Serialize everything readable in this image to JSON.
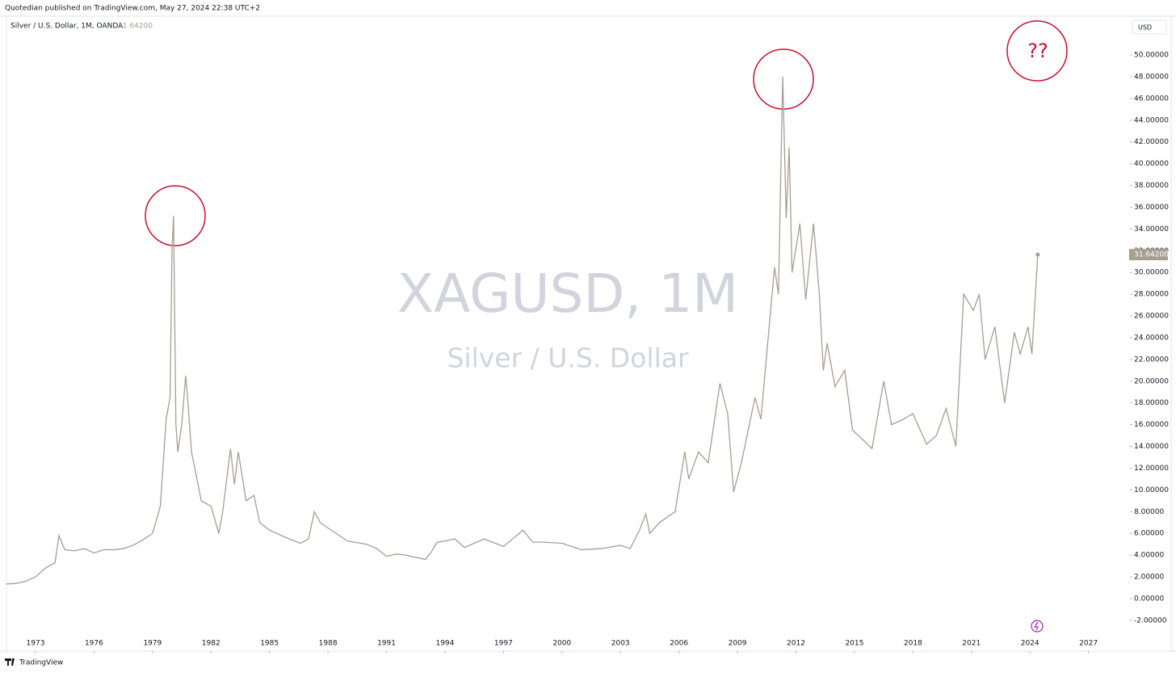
{
  "publisher_note": "Quotedian published on TradingView.com, May 27, 2024 22:38 UTC+2",
  "footer_brand": "TradingView",
  "currency_button": "USD",
  "chart_data": {
    "type": "line",
    "title": "Silver / U.S. Dollar, 1M, OANDA",
    "watermark_symbol": "XAGUSD, 1M",
    "watermark_name": "Silver / U.S. Dollar",
    "annotations": [
      "??"
    ],
    "last_price": {
      "value": 31.642,
      "label": "31.64200"
    },
    "x": [
      1971.5,
      1972.0,
      1972.5,
      1973.0,
      1973.5,
      1974.0,
      1974.2,
      1974.5,
      1975.0,
      1975.5,
      1976.0,
      1976.5,
      1977.0,
      1977.5,
      1978.0,
      1978.5,
      1979.0,
      1979.4,
      1979.7,
      1979.9,
      1980.0,
      1980.08,
      1980.2,
      1980.3,
      1980.5,
      1980.7,
      1980.8,
      1981.0,
      1981.5,
      1982.0,
      1982.4,
      1982.6,
      1983.0,
      1983.2,
      1983.4,
      1983.8,
      1984.2,
      1984.5,
      1985.0,
      1986.0,
      1986.6,
      1987.0,
      1987.3,
      1987.6,
      1988.0,
      1989.0,
      1990.0,
      1990.5,
      1991.0,
      1991.5,
      1992.0,
      1992.5,
      1993.0,
      1993.3,
      1993.6,
      1994.0,
      1994.5,
      1995.0,
      1996.0,
      1997.0,
      1998.0,
      1998.5,
      1999.0,
      2000.0,
      2001.0,
      2002.0,
      2003.0,
      2003.5,
      2004.0,
      2004.3,
      2004.5,
      2005.0,
      2005.8,
      2006.3,
      2006.5,
      2007.0,
      2007.5,
      2008.1,
      2008.5,
      2008.8,
      2009.2,
      2009.9,
      2010.2,
      2010.9,
      2011.1,
      2011.32,
      2011.5,
      2011.65,
      2011.8,
      2012.2,
      2012.5,
      2012.9,
      2013.2,
      2013.4,
      2013.6,
      2014.0,
      2014.5,
      2014.9,
      2015.5,
      2015.9,
      2016.5,
      2016.9,
      2017.5,
      2018.0,
      2018.7,
      2019.2,
      2019.7,
      2020.2,
      2020.6,
      2021.1,
      2021.4,
      2021.7,
      2022.2,
      2022.7,
      2023.2,
      2023.5,
      2023.9,
      2024.1,
      2024.4
    ],
    "series": [
      {
        "name": "XAGUSD",
        "color": "#a89d91",
        "values": [
          1.35,
          1.4,
          1.6,
          2.0,
          2.8,
          3.3,
          5.8,
          4.5,
          4.4,
          4.6,
          4.2,
          4.5,
          4.5,
          4.6,
          4.9,
          5.4,
          6.0,
          8.5,
          16.5,
          18.5,
          32,
          35.2,
          16,
          13.5,
          16,
          20.5,
          18.5,
          13.5,
          9,
          8.5,
          6.0,
          8,
          13.8,
          10.5,
          13.5,
          9,
          9.5,
          7,
          6.3,
          5.5,
          5.1,
          5.5,
          8.0,
          7,
          6.5,
          5.3,
          5.0,
          4.6,
          3.9,
          4.1,
          4.0,
          3.8,
          3.6,
          4.3,
          5.2,
          5.3,
          5.5,
          4.7,
          5.5,
          4.8,
          6.3,
          5.2,
          5.2,
          5.1,
          4.5,
          4.6,
          4.9,
          4.6,
          6.4,
          7.8,
          6.0,
          7.0,
          8.0,
          13.5,
          11,
          13.5,
          12.5,
          19.8,
          17,
          9.8,
          12.5,
          18.5,
          16.5,
          30.5,
          28,
          48,
          35,
          41.5,
          30,
          34.5,
          27.5,
          34.5,
          28,
          21,
          23.5,
          19.5,
          21,
          15.5,
          14.5,
          13.8,
          20,
          16,
          16.5,
          17,
          14.2,
          15,
          17.5,
          14.0,
          28,
          26.5,
          28,
          22,
          25,
          18,
          24.5,
          22.5,
          25,
          22.5,
          31.642
        ]
      }
    ],
    "xlim": [
      1971.51,
      2028.88
    ],
    "xticks": [
      1973,
      1976,
      1979,
      1982,
      1985,
      1988,
      1991,
      1994,
      1997,
      2000,
      2003,
      2006,
      2009,
      2012,
      2015,
      2018,
      2021,
      2024,
      2027
    ],
    "ylim": [
      -4.83,
      53.57
    ],
    "yticks": [
      {
        "value": -2,
        "label": "-2.00000"
      },
      {
        "value": 0,
        "label": "0.00000"
      },
      {
        "value": 2,
        "label": "2.00000"
      },
      {
        "value": 4,
        "label": "4.00000"
      },
      {
        "value": 6,
        "label": "6.00000"
      },
      {
        "value": 8,
        "label": "8.00000"
      },
      {
        "value": 10,
        "label": "10.00000"
      },
      {
        "value": 12,
        "label": "12.00000"
      },
      {
        "value": 14,
        "label": "14.00000"
      },
      {
        "value": 16,
        "label": "16.00000"
      },
      {
        "value": 18,
        "label": "18.00000"
      },
      {
        "value": 20,
        "label": "20.00000"
      },
      {
        "value": 22,
        "label": "22.00000"
      },
      {
        "value": 24,
        "label": "24.00000"
      },
      {
        "value": 26,
        "label": "26.00000"
      },
      {
        "value": 28,
        "label": "28.00000"
      },
      {
        "value": 30,
        "label": "30.00000"
      },
      {
        "value": 32,
        "label": "32.00000"
      },
      {
        "value": 34,
        "label": "34.00000"
      },
      {
        "value": 36,
        "label": "36.00000"
      },
      {
        "value": 38,
        "label": "38.00000"
      },
      {
        "value": 40,
        "label": "40.00000"
      },
      {
        "value": 42,
        "label": "42.00000"
      },
      {
        "value": 44,
        "label": "44.00000"
      },
      {
        "value": 46,
        "label": "46.00000"
      },
      {
        "value": 48,
        "label": "48.00000"
      },
      {
        "value": 50,
        "label": "50.00000"
      }
    ],
    "grid": false
  }
}
